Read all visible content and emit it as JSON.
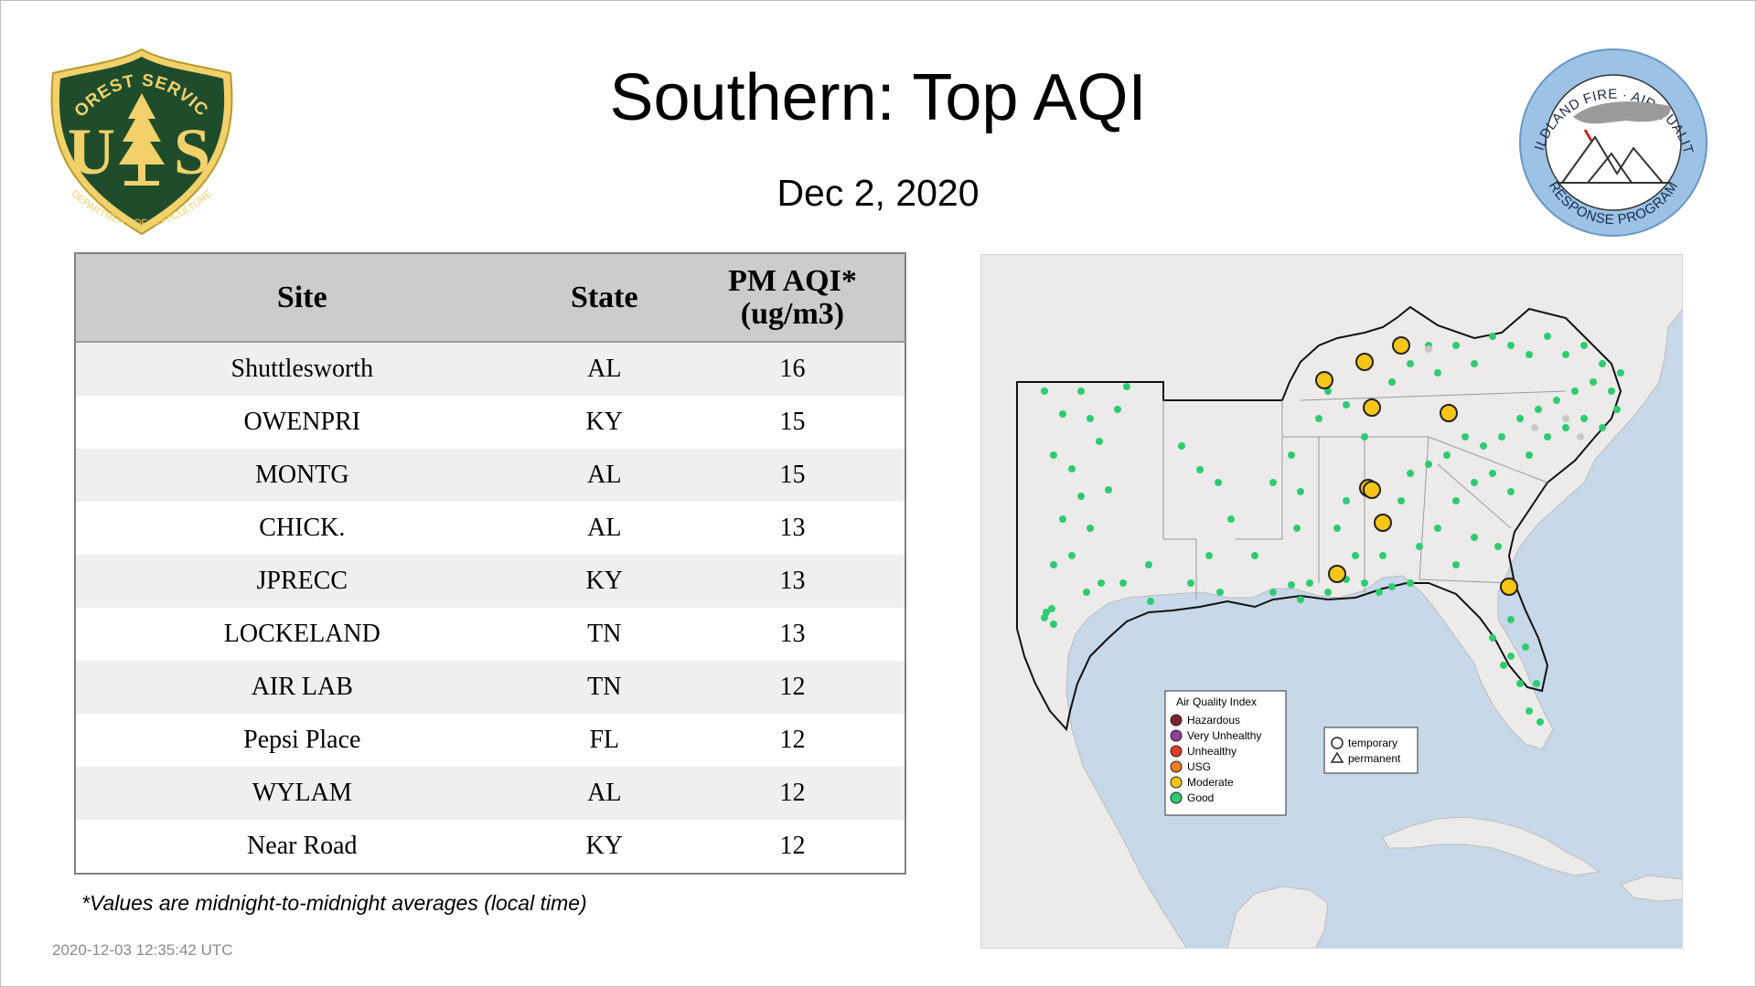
{
  "header": {
    "title": "Southern: Top AQI",
    "date": "Dec  2, 2020"
  },
  "logos": {
    "forest_service": {
      "top_text": "FOREST SERVICE",
      "letters_left": "U",
      "letters_right": "S",
      "bottom_text": "DEPARTMENT OF AGRICULTURE"
    },
    "wildland": {
      "top_text": "WILDLAND FIRE · AIR QUALITY",
      "bottom_text": "RESPONSE PROGRAM"
    }
  },
  "table": {
    "headers": {
      "site": "Site",
      "state": "State",
      "pm_line1": "PM AQI*",
      "pm_line2": "(ug/m3)"
    },
    "rows": [
      {
        "site": "Shuttlesworth",
        "state": "AL",
        "value": "16"
      },
      {
        "site": "OWENPRI",
        "state": "KY",
        "value": "15"
      },
      {
        "site": "MONTG",
        "state": "AL",
        "value": "15"
      },
      {
        "site": "CHICK.",
        "state": "AL",
        "value": "13"
      },
      {
        "site": "JPRECC",
        "state": "KY",
        "value": "13"
      },
      {
        "site": "LOCKELAND",
        "state": "TN",
        "value": "13"
      },
      {
        "site": "AIR LAB",
        "state": "TN",
        "value": "12"
      },
      {
        "site": "Pepsi Place",
        "state": "FL",
        "value": "12"
      },
      {
        "site": "WYLAM",
        "state": "AL",
        "value": "12"
      },
      {
        "site": "Near Road",
        "state": "KY",
        "value": "12"
      }
    ]
  },
  "footnote": "*Values are midnight-to-midnight averages (local time)",
  "timestamp": "2020-12-03 12:35:42 UTC",
  "map": {
    "legend": {
      "title": "Air Quality Index",
      "items": [
        {
          "label": "Hazardous",
          "color": "#7e2430"
        },
        {
          "label": "Very Unhealthy",
          "color": "#8f3f97"
        },
        {
          "label": "Unhealthy",
          "color": "#e23b23"
        },
        {
          "label": "USG",
          "color": "#f47c20"
        },
        {
          "label": "Moderate",
          "color": "#f5c518"
        },
        {
          "label": "Good",
          "color": "#2ecc71"
        }
      ]
    },
    "type_legend": {
      "temporary": "temporary",
      "permanent": "permanent"
    },
    "colors": {
      "water": "#c7d8e8",
      "land": "#ecebea",
      "good": "#2ecc71",
      "moderate": "#f5c518",
      "missing": "#c8c8c8"
    }
  }
}
